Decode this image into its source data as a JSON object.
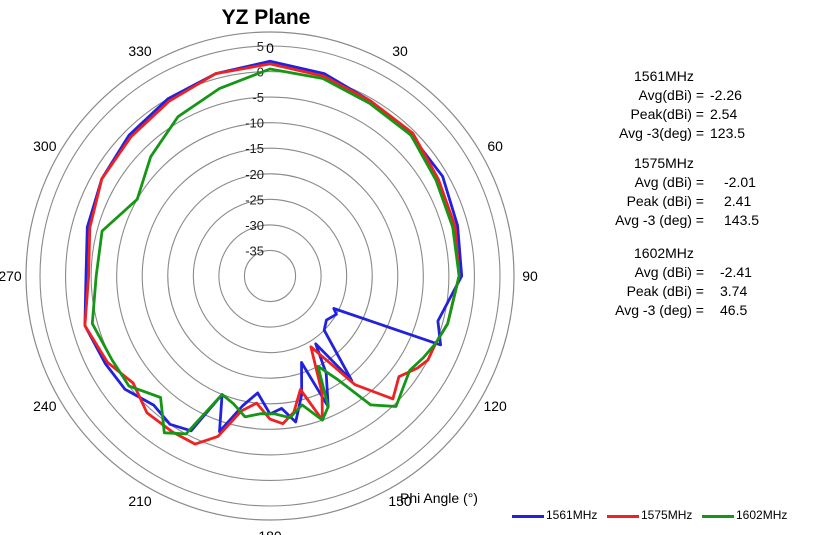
{
  "chart_data": {
    "type": "polar-line",
    "title": "YZ Plane",
    "angle_axis_label": "Phi Angle (°)",
    "angle_ticks": [
      0,
      30,
      60,
      90,
      120,
      150,
      180,
      210,
      240,
      270,
      300,
      330
    ],
    "radial_ticks": [
      5,
      0,
      -5,
      -10,
      -15,
      -20,
      -25,
      -30,
      -35
    ],
    "radial_range": [
      -40,
      5
    ],
    "colors": {
      "1561MHz": "#2222dd",
      "1575MHz": "#ee2222",
      "1602MHz": "#169616",
      "grid": "#8a8a8a"
    },
    "series": [
      {
        "name": "1561MHz",
        "angles": [
          0,
          15,
          30,
          45,
          60,
          75,
          90,
          105,
          112,
          117,
          120,
          128,
          135,
          142,
          146,
          150,
          156,
          160,
          165,
          170,
          175,
          180,
          186,
          192,
          198,
          202,
          207,
          214,
          222,
          232,
          242,
          255,
          270,
          285,
          300,
          315,
          330,
          345
        ],
        "values": [
          2,
          1,
          -0.5,
          -1,
          -1,
          -2,
          -2.5,
          -6,
          -4,
          -26,
          -25,
          -26,
          -25,
          -14,
          -24,
          -18,
          -12,
          -22,
          -16,
          -11,
          -14,
          -13,
          -17,
          -14,
          -8,
          -15,
          -6,
          -5,
          -6,
          -4,
          -3.5,
          -2.5,
          -4,
          -3,
          -2,
          -1,
          0,
          1
        ]
      },
      {
        "name": "1575MHz",
        "angles": [
          0,
          15,
          30,
          45,
          60,
          75,
          90,
          105,
          112,
          118,
          122,
          128,
          135,
          142,
          146,
          150,
          156,
          160,
          165,
          170,
          175,
          180,
          186,
          192,
          198,
          204,
          212,
          222,
          232,
          242,
          255,
          270,
          285,
          300,
          315,
          330,
          345
        ],
        "values": [
          1.5,
          0.5,
          -0.5,
          -0.5,
          -2,
          -2.5,
          -3,
          -4,
          -5,
          -5,
          -6,
          -8,
          -6,
          -13,
          -20,
          -24,
          -15,
          -10,
          -17,
          -13,
          -11,
          -12,
          -15,
          -13,
          -7,
          -4,
          -4,
          -4,
          -6,
          -4,
          -2.5,
          -4.5,
          -3.5,
          -2,
          -1.5,
          -0.5,
          1
        ]
      },
      {
        "name": "1602MHz",
        "angles": [
          0,
          15,
          30,
          45,
          60,
          75,
          90,
          105,
          112,
          118,
          124,
          130,
          136,
          142,
          147,
          152,
          156,
          160,
          166,
          172,
          178,
          184,
          190,
          196,
          202,
          208,
          214,
          222,
          232,
          242,
          255,
          270,
          285,
          300,
          315,
          330,
          345
        ],
        "values": [
          0.5,
          0,
          -1,
          -1,
          -2.5,
          -3,
          -3,
          -4,
          -5,
          -6,
          -7,
          -6,
          -4.5,
          -8,
          -16,
          -20,
          -12,
          -10,
          -14,
          -12,
          -13,
          -13,
          -12,
          -14,
          -15,
          -5,
          -3,
          -8,
          -5,
          -5,
          -4,
          -6,
          -6,
          -10,
          -7,
          -4,
          -2
        ]
      }
    ]
  },
  "annotations": [
    {
      "freq": "1561MHz",
      "rows": [
        {
          "label": "Avg(dBi) =",
          "value": "-2.26"
        },
        {
          "label": "Peak(dBi) =",
          "value": "2.54"
        },
        {
          "label": "Avg -3(deg) =",
          "value": "123.5"
        }
      ]
    },
    {
      "freq": "1575MHz",
      "rows": [
        {
          "label": "Avg (dBi) =",
          "value": "-2.01"
        },
        {
          "label": "Peak (dBi) =",
          "value": "2.41"
        },
        {
          "label": "Avg -3 (deg) =",
          "value": "143.5"
        }
      ]
    },
    {
      "freq": "1602MHz",
      "rows": [
        {
          "label": "Avg (dBi) =",
          "value": "-2.41"
        },
        {
          "label": "Peak (dBi) =",
          "value": "3.74"
        },
        {
          "label": "Avg -3 (deg) =",
          "value": "46.5"
        }
      ]
    }
  ],
  "legend": [
    {
      "label": "1561MHz",
      "color": "#2222dd"
    },
    {
      "label": "1575MHz",
      "color": "#ee2222"
    },
    {
      "label": "1602MHz",
      "color": "#169616"
    }
  ]
}
